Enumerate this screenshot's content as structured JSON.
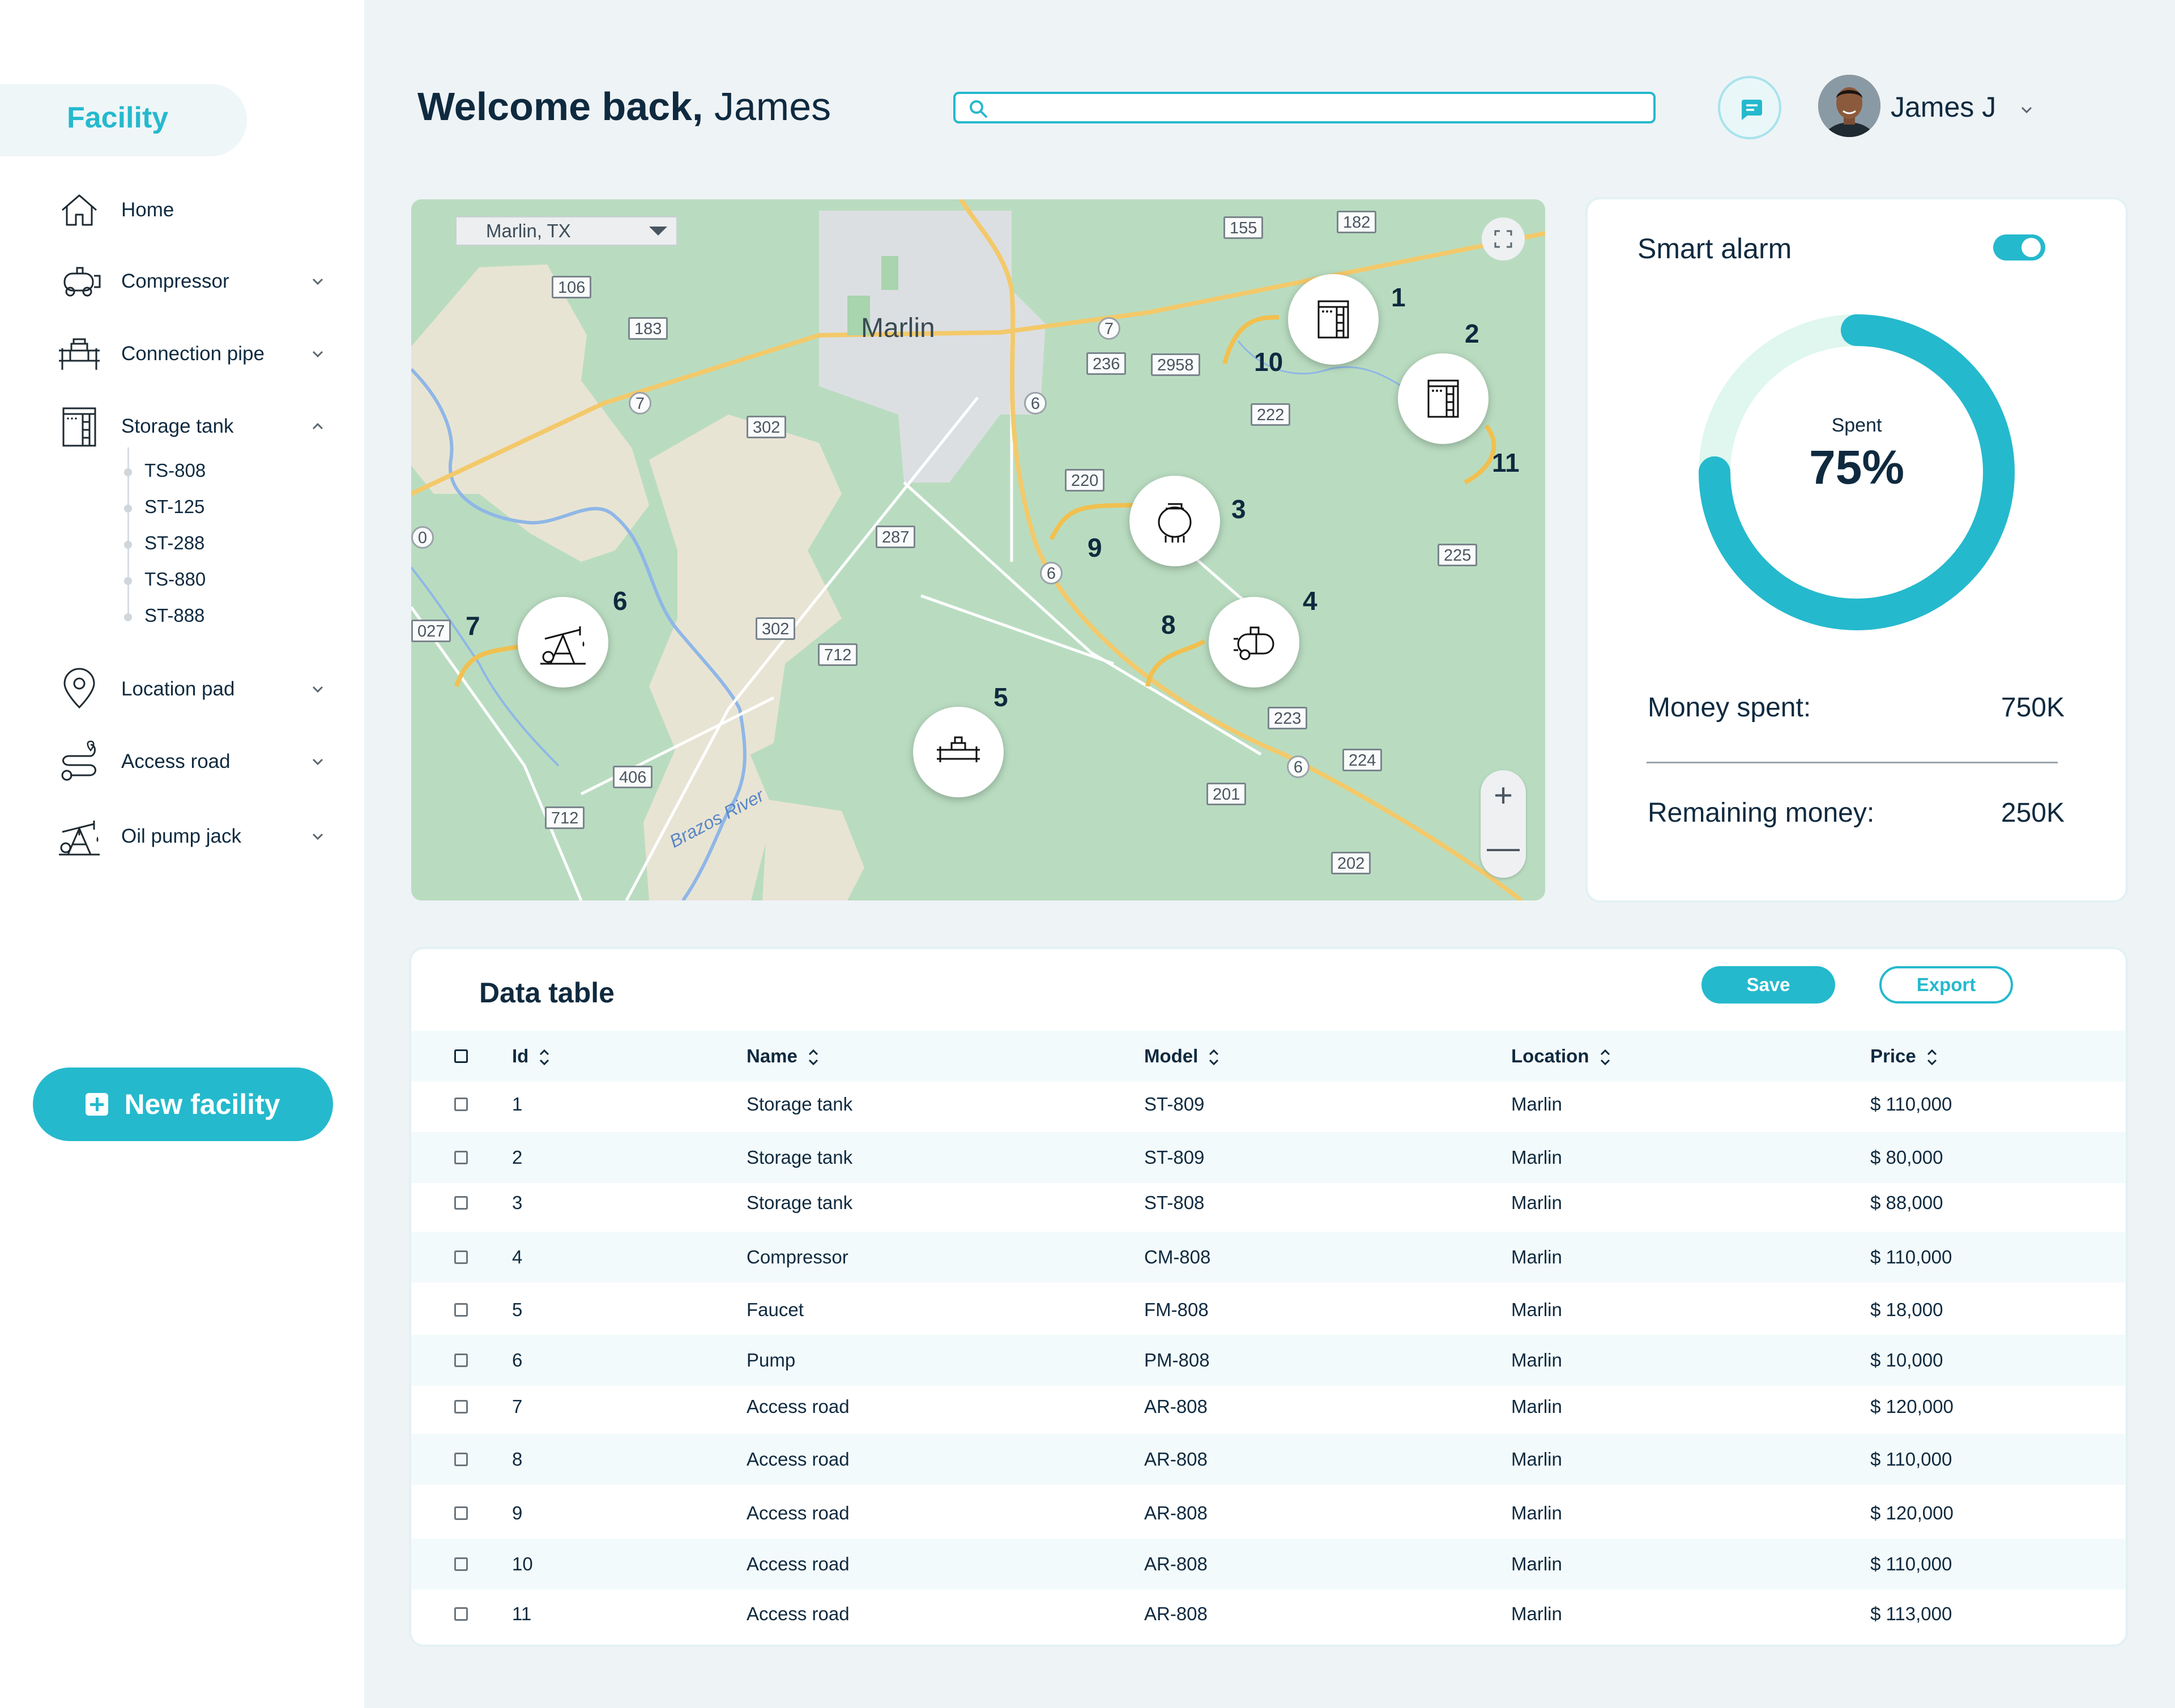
{
  "sidebar": {
    "logo": "Facility",
    "items": [
      {
        "label": "Home"
      },
      {
        "label": "Compressor"
      },
      {
        "label": "Connection pipe"
      },
      {
        "label": "Storage tank"
      },
      {
        "label": "Location pad"
      },
      {
        "label": "Access road"
      },
      {
        "label": "Oil pump jack"
      }
    ],
    "storage_sub": [
      "TS-808",
      "ST-125",
      "ST-288",
      "TS-880",
      "ST-888"
    ],
    "new_facility": "New facility"
  },
  "header": {
    "welcome_bold": "Welcome back,",
    "welcome_name": " James",
    "search_placeholder": "",
    "user_name": "James J"
  },
  "map": {
    "location_select": "Marlin, TX",
    "city_label": "Marlin",
    "river_label": "Brazos River",
    "road_labels": [
      "106",
      "183",
      "155",
      "182",
      "7",
      "236",
      "2958",
      "222",
      "302",
      "287",
      "220",
      "6",
      "225",
      "0",
      "027",
      "302",
      "712",
      "223",
      "224",
      "406",
      "712",
      "201",
      "202",
      "6",
      "6",
      "7"
    ],
    "markers": [
      {
        "num": "1",
        "icon": "storage-tank"
      },
      {
        "num": "2",
        "icon": "storage-tank"
      },
      {
        "num": "3",
        "icon": "location-pad-tank"
      },
      {
        "num": "4",
        "icon": "compressor"
      },
      {
        "num": "5",
        "icon": "connection-pipe"
      },
      {
        "num": "6",
        "icon": "oil-pump-jack"
      },
      {
        "num": "7",
        "icon": "access-road"
      },
      {
        "num": "8",
        "icon": "access-road"
      },
      {
        "num": "9",
        "icon": "access-road"
      },
      {
        "num": "10",
        "icon": "access-road"
      },
      {
        "num": "11",
        "icon": "access-road"
      }
    ],
    "zoom_in": "+",
    "zoom_out": "—"
  },
  "alarm": {
    "title": "Smart alarm",
    "toggle_on": true,
    "spent_label": "Spent",
    "spent_value": "75%",
    "spent_fraction": 0.75,
    "money_spent_label": "Money spent:",
    "money_spent_value": "750K",
    "remaining_label": "Remaining money:",
    "remaining_value": "250K",
    "accent": "#25b9cd"
  },
  "table": {
    "title": "Data table",
    "save": "Save",
    "export": "Export",
    "columns": [
      "Id",
      "Name",
      "Model",
      "Location",
      "Price"
    ],
    "rows": [
      {
        "id": "1",
        "name": "Storage tank",
        "model": "ST-809",
        "location": "Marlin",
        "price": "$ 110,000"
      },
      {
        "id": "2",
        "name": "Storage tank",
        "model": "ST-809",
        "location": "Marlin",
        "price": "$ 80,000"
      },
      {
        "id": "3",
        "name": "Storage tank",
        "model": "ST-808",
        "location": "Marlin",
        "price": "$ 88,000"
      },
      {
        "id": "4",
        "name": "Compressor",
        "model": "CM-808",
        "location": "Marlin",
        "price": "$ 110,000"
      },
      {
        "id": "5",
        "name": "Faucet",
        "model": "FM-808",
        "location": "Marlin",
        "price": "$ 18,000"
      },
      {
        "id": "6",
        "name": "Pump",
        "model": "PM-808",
        "location": "Marlin",
        "price": "$ 10,000"
      },
      {
        "id": "7",
        "name": "Access road",
        "model": "AR-808",
        "location": "Marlin",
        "price": "$ 120,000"
      },
      {
        "id": "8",
        "name": "Access road",
        "model": "AR-808",
        "location": "Marlin",
        "price": "$ 110,000"
      },
      {
        "id": "9",
        "name": "Access road",
        "model": "AR-808",
        "location": "Marlin",
        "price": "$ 120,000"
      },
      {
        "id": "10",
        "name": "Access road",
        "model": "AR-808",
        "location": "Marlin",
        "price": "$ 110,000"
      },
      {
        "id": "11",
        "name": "Access road",
        "model": "AR-808",
        "location": "Marlin",
        "price": "$ 113,000"
      }
    ]
  }
}
